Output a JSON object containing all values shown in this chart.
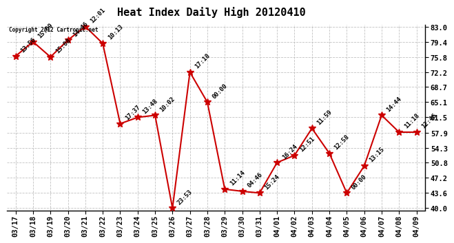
{
  "title": "Heat Index Daily High 20120410",
  "copyright": "Copyright 2012 Cartronic.net",
  "dates": [
    "03/17",
    "03/18",
    "03/19",
    "03/20",
    "03/21",
    "03/22",
    "03/23",
    "03/24",
    "03/25",
    "03/26",
    "03/27",
    "03/28",
    "03/29",
    "03/30",
    "03/31",
    "04/01",
    "04/02",
    "04/03",
    "04/04",
    "04/05",
    "04/06",
    "04/07",
    "04/08",
    "04/09"
  ],
  "values": [
    76.0,
    79.4,
    75.8,
    79.8,
    83.0,
    79.0,
    60.0,
    61.5,
    62.0,
    40.0,
    72.2,
    65.1,
    44.5,
    44.0,
    43.6,
    50.8,
    52.5,
    58.9,
    53.0,
    43.6,
    50.0,
    62.0,
    58.0,
    58.0
  ],
  "labels": [
    "13:56",
    "15:09",
    "15:08",
    "14:46",
    "12:01",
    "10:13",
    "17:37",
    "13:48",
    "10:02",
    "23:53",
    "17:18",
    "00:00",
    "11:14",
    "04:46",
    "15:24",
    "16:24",
    "12:51",
    "11:59",
    "12:58",
    "00:00",
    "13:15",
    "14:44",
    "11:18",
    "12:46"
  ],
  "ylim_min": 40.0,
  "ylim_max": 83.0,
  "yticks": [
    40.0,
    43.6,
    47.2,
    50.8,
    54.3,
    57.9,
    61.5,
    65.1,
    68.7,
    72.2,
    75.8,
    79.4,
    83.0
  ],
  "line_color": "#cc0000",
  "marker_color": "#cc0000",
  "bg_color": "#ffffff",
  "grid_color": "#bbbbbb",
  "title_fontsize": 11,
  "label_fontsize": 6.5,
  "tick_fontsize": 7.5,
  "copyright_fontsize": 5.5
}
